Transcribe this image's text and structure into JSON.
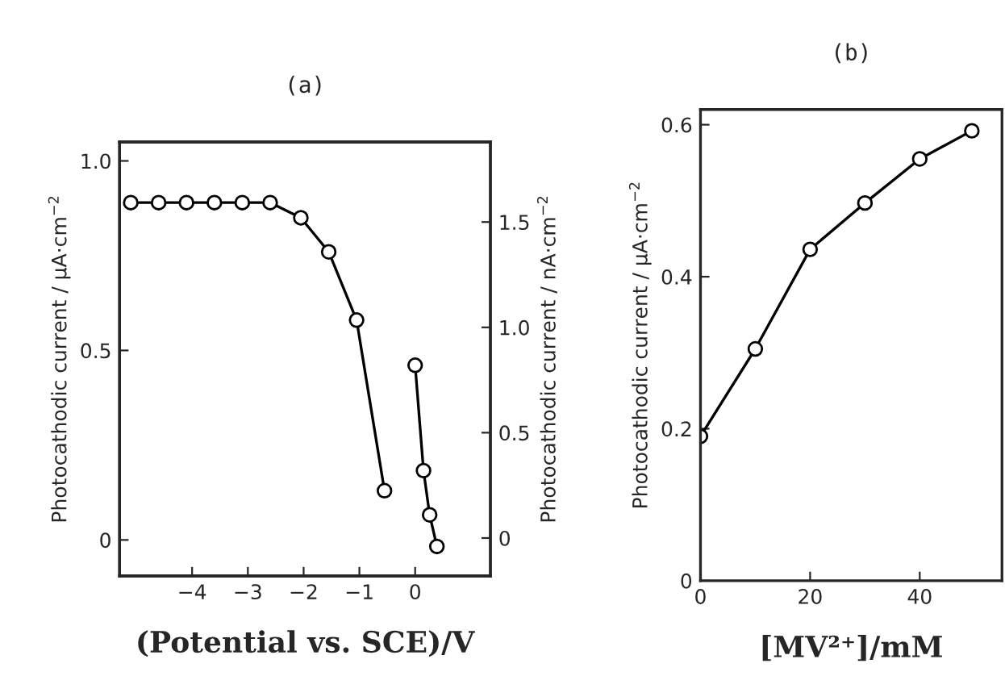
{
  "chart_data": [
    {
      "type": "line",
      "title": "(a)",
      "xlabel": "(Potential vs. SCE)/V",
      "ylabel": "Photocathodic current / μA·cm$^{−2}$",
      "y2label": "Photocathodic current / nA·cm$^{−2}$",
      "xlim": [
        -5.3,
        1.35
      ],
      "xticks": [
        {
          "value": -4,
          "label": "−4"
        },
        {
          "value": -3,
          "label": "−3"
        },
        {
          "value": -2,
          "label": "−2"
        },
        {
          "value": -1,
          "label": "−1"
        },
        0
      ],
      "ylim": [
        -0.095,
        1.05
      ],
      "yticks": [
        0,
        0.5,
        {
          "value": 1.0,
          "label": "1.0"
        }
      ],
      "y2lim": [
        -0.18,
        1.88
      ],
      "y2ticks": [
        0,
        0.5,
        {
          "value": 1.0,
          "label": "1.0"
        },
        1.5
      ],
      "marker": "circle",
      "line_style": "solid",
      "grid": false,
      "legend": false,
      "series": [
        {
          "color": "#000000",
          "x": [
            -5.1,
            -4.6,
            -4.1,
            -3.6,
            -3.1,
            -2.6,
            -2.05,
            -1.55,
            -1.05,
            -0.55
          ],
          "values": [
            0.89,
            0.89,
            0.89,
            0.89,
            0.89,
            0.89,
            0.85,
            0.76,
            0.58,
            0.13
          ]
        },
        {
          "color": "#000000",
          "axis": "y2",
          "x": [
            0.0,
            0.15,
            0.26,
            0.39
          ],
          "values": [
            0.82,
            0.32,
            0.11,
            -0.04
          ]
        }
      ]
    },
    {
      "type": "line",
      "title": "(b)",
      "xlabel": "[MV²⁺]/mM",
      "ylabel": "Photocathodic current / μA·cm$^{−2}$",
      "xlim": [
        0,
        55
      ],
      "xticks": [
        0,
        20,
        40
      ],
      "ylim": [
        0,
        0.62
      ],
      "yticks": [
        0,
        0.2,
        0.4,
        0.6
      ],
      "marker": "circle",
      "line_style": "solid",
      "grid": false,
      "legend": false,
      "series": [
        {
          "color": "#000000",
          "x": [
            0,
            10,
            20,
            30,
            40,
            49.5
          ],
          "values": [
            0.19,
            0.305,
            0.436,
            0.497,
            0.555,
            0.592
          ]
        }
      ]
    }
  ]
}
